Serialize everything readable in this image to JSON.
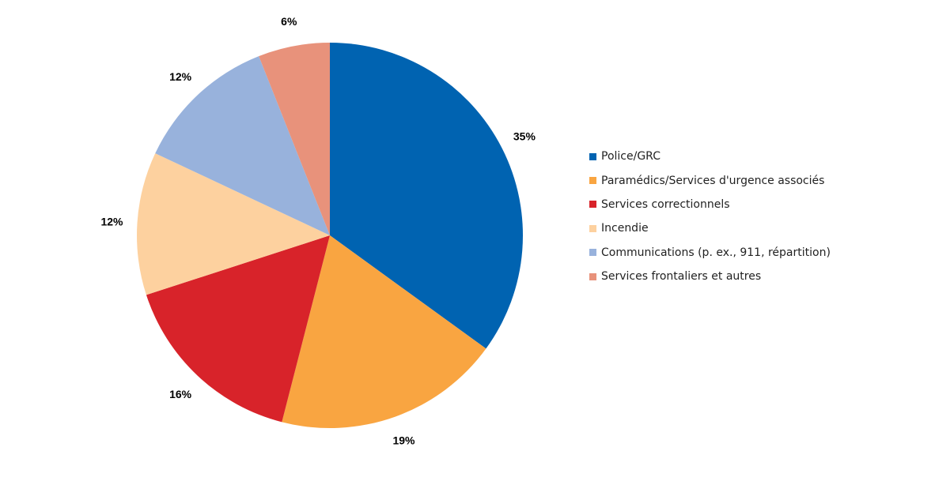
{
  "chart_data": {
    "type": "pie",
    "title": "",
    "labels": [
      "Police/GRC",
      "Paramédics/Services d'urgence associés",
      "Services correctionnels",
      "Incendie",
      "Communications (p. ex., 911, répartition)",
      "Services frontaliers et autres"
    ],
    "values": [
      35,
      19,
      16,
      12,
      12,
      6
    ],
    "value_labels": [
      "35%",
      "19%",
      "16%",
      "12%",
      "12%",
      "6%"
    ],
    "colors": [
      "#0063B1",
      "#F9A541",
      "#D8232A",
      "#FDD19F",
      "#98B2DC",
      "#E8927B"
    ],
    "start": "12 o'clock",
    "direction": "clockwise",
    "legend_position": "right"
  }
}
